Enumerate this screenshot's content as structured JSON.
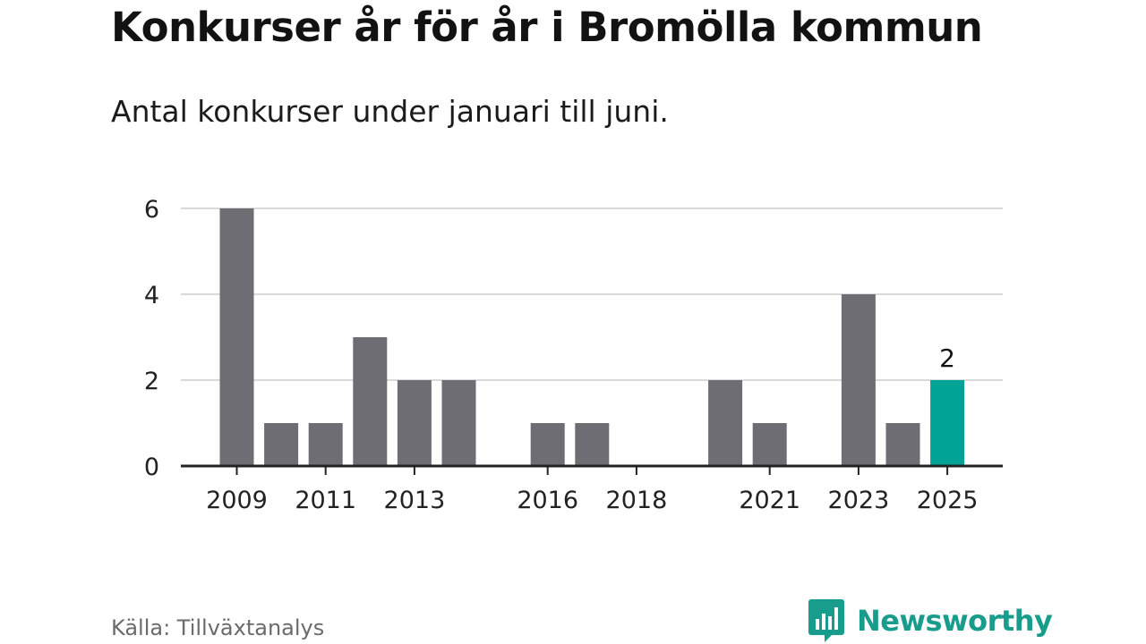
{
  "header": {
    "title": "Konkurser år för år i Bromölla kommun",
    "subtitle": "Antal konkurser under januari till juni."
  },
  "footer": {
    "source": "Källa: Tillväxtanalys",
    "brand": "Newsworthy",
    "brand_icon": "bar-chart-speech-bubble-icon"
  },
  "colors": {
    "bar": "#6e6d73",
    "highlight": "#00a396",
    "grid": "#d9d9d9",
    "axis": "#222222",
    "brand": "#189c8c"
  },
  "chart_data": {
    "type": "bar",
    "title": "Konkurser år för år i Bromölla kommun",
    "subtitle": "Antal konkurser under januari till juni.",
    "xlabel": "",
    "ylabel": "",
    "categories": [
      "2009",
      "2010",
      "2011",
      "2012",
      "2013",
      "2014",
      "2015",
      "2016",
      "2017",
      "2018",
      "2019",
      "2020",
      "2021",
      "2022",
      "2023",
      "2024",
      "2025"
    ],
    "values": [
      6,
      1,
      1,
      3,
      2,
      2,
      0,
      1,
      1,
      0,
      0,
      2,
      1,
      0,
      4,
      1,
      2
    ],
    "x_tick_labels": [
      "2009",
      "2011",
      "2013",
      "2016",
      "2018",
      "2021",
      "2023",
      "2025"
    ],
    "y_ticks": [
      0,
      2,
      4,
      6
    ],
    "ylim": [
      0,
      6
    ],
    "grid": true,
    "highlight_category": "2025",
    "data_labels": [
      {
        "category": "2025",
        "text": "2"
      }
    ]
  }
}
